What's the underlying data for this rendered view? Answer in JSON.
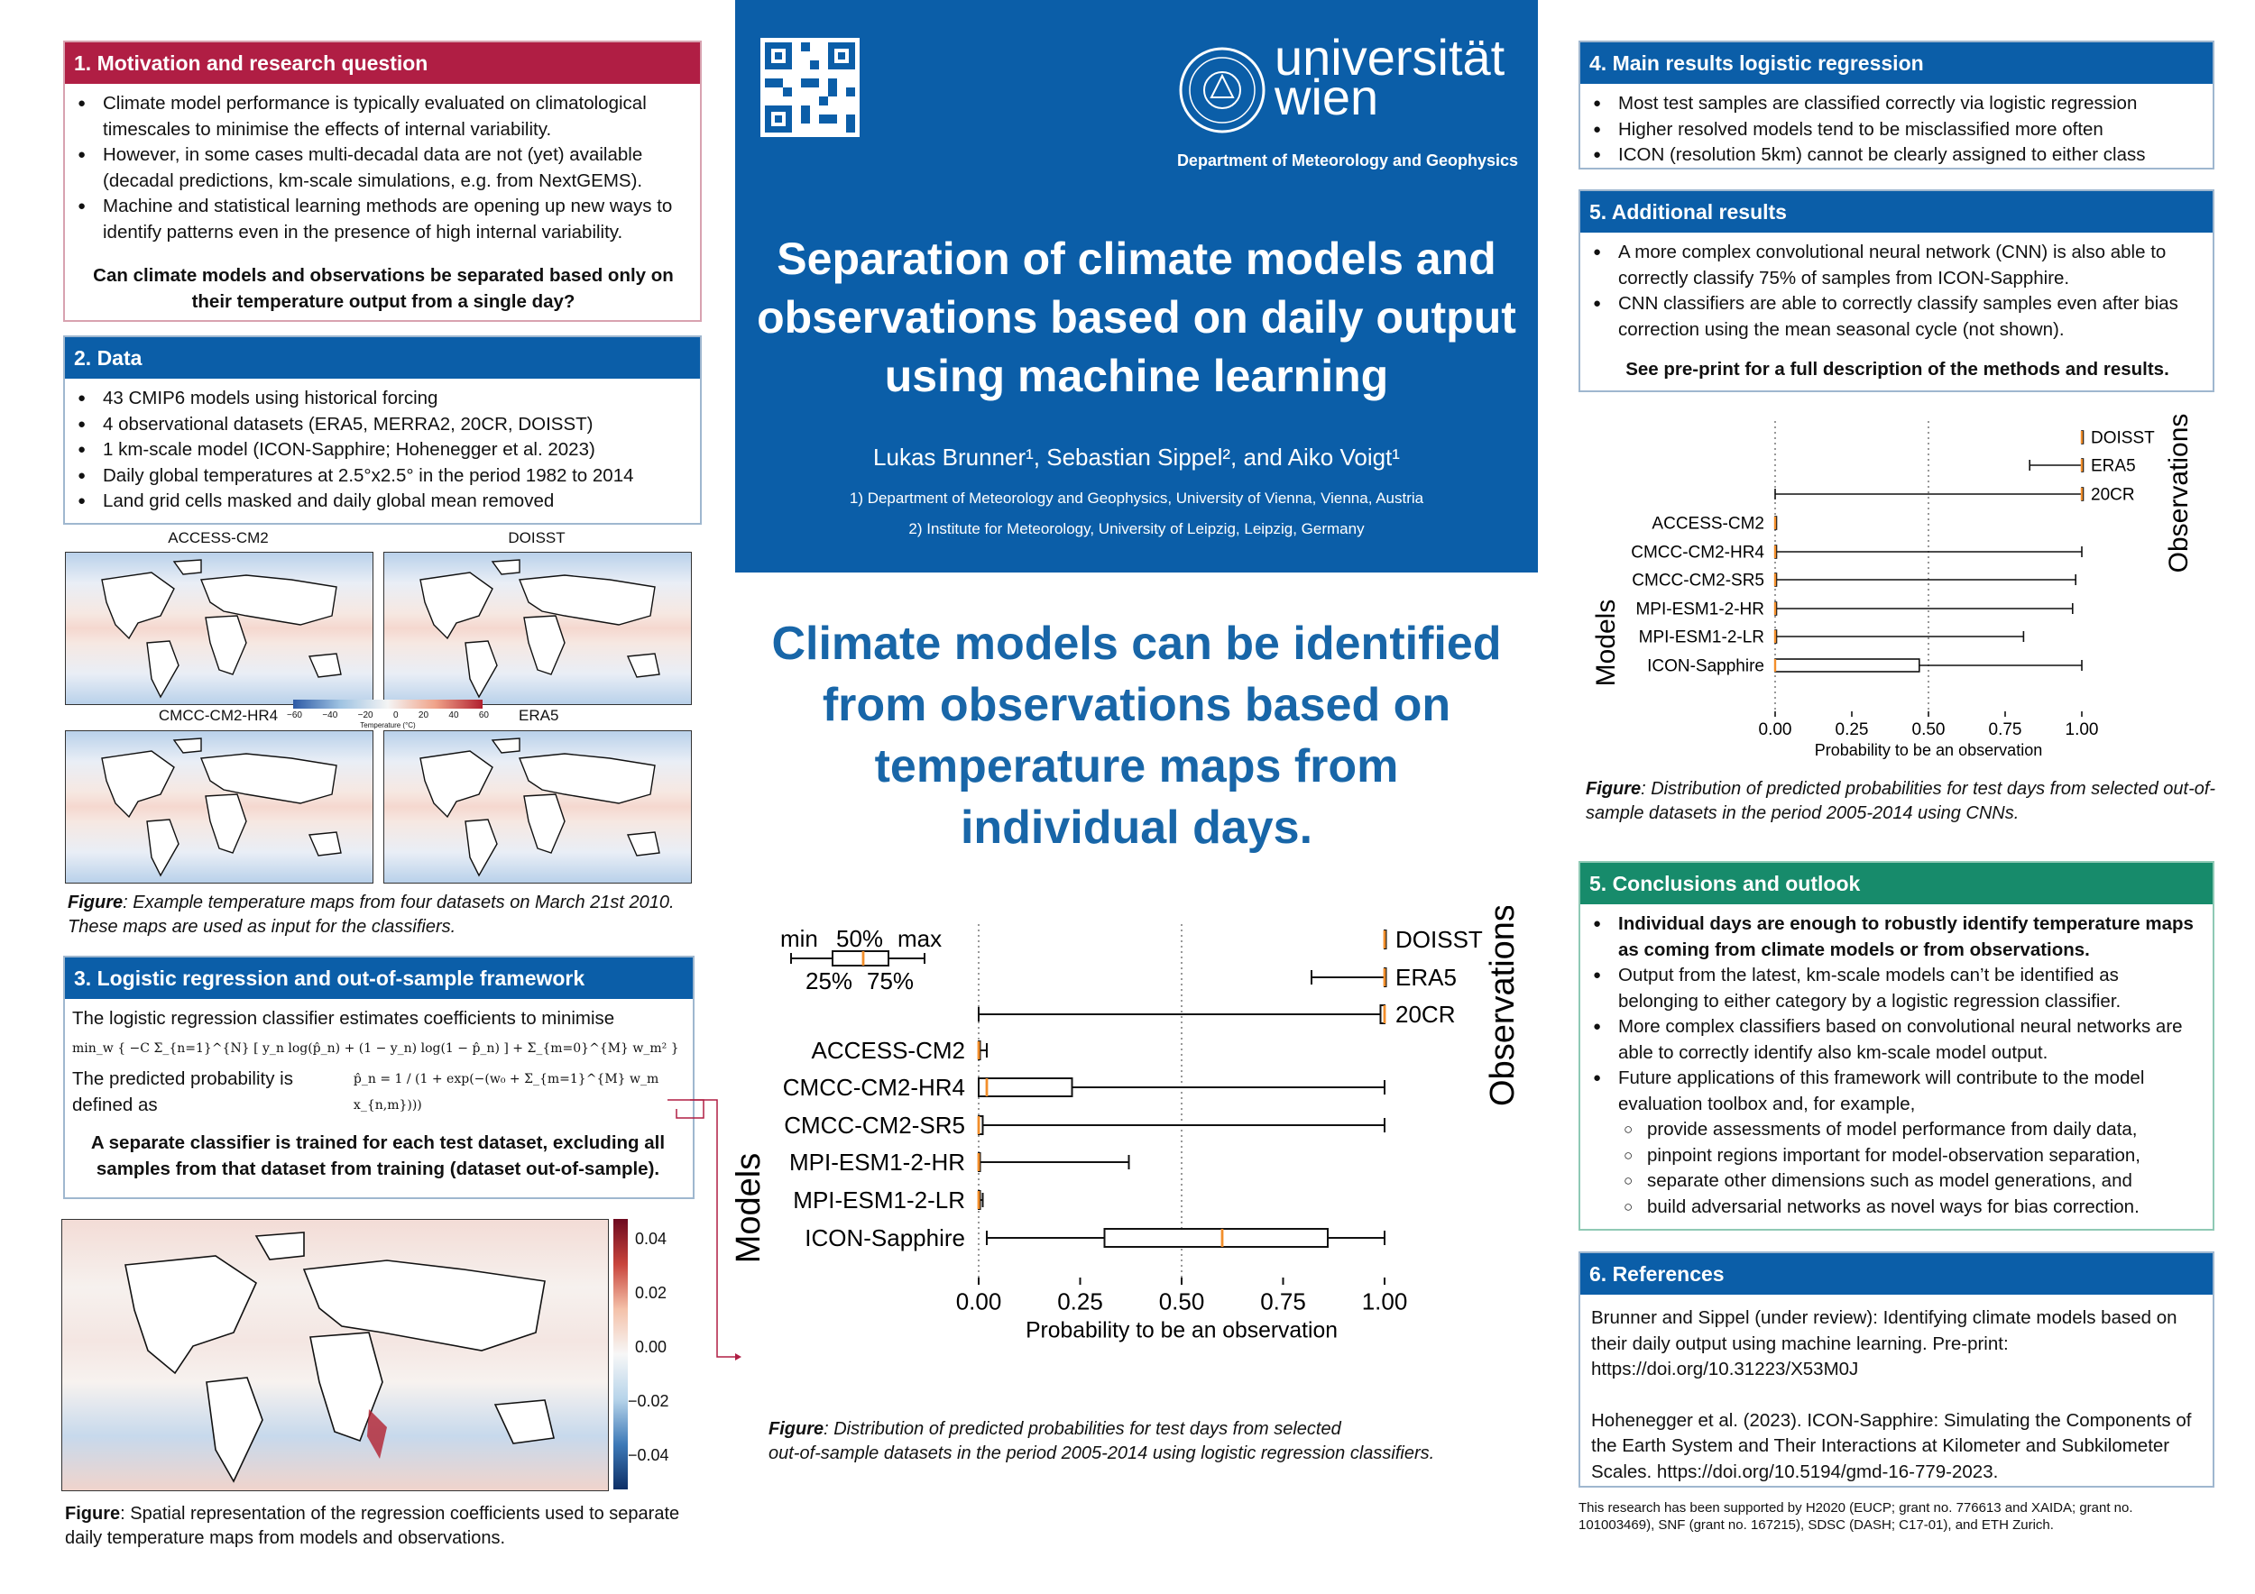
{
  "header": {
    "university": "universität wien",
    "university_line1": "universität",
    "university_line2": "wien",
    "department": "Department of Meteorology and Geophysics",
    "title_lines": [
      "Separation of climate models and",
      "observations based on daily output",
      "using machine learning"
    ],
    "authors": "Lukas Brunner¹, Sebastian Sippel², and Aiko Voigt¹",
    "affiliation1": "1) Department of Meteorology and Geophysics, University of Vienna, Vienna, Austria",
    "affiliation2": "2) Institute for Meteorology, University of Leipzig, Leipzig, Germany"
  },
  "key_message": [
    "Climate models can be identified",
    "from observations based on",
    "temperature maps from",
    "individual days."
  ],
  "colors": {
    "primary_blue": "#0b5ea8",
    "red": "#b01e44",
    "green": "#178b6b",
    "headline_blue": "#1866a8",
    "median_orange": "#f28e2b"
  },
  "section1": {
    "title": "1. Motivation and research question",
    "bullets": [
      "Climate model performance is typically evaluated on climatological timescales to minimise the effects of internal variability.",
      "However, in some cases multi-decadal data are not (yet) available (decadal predictions, km-scale simulations, e.g. from NextGEMS).",
      "Machine and statistical learning methods are opening up new ways to identify patterns even in the presence of high internal variability."
    ],
    "question": "Can climate models and observations be separated based only on their temperature output from a single day?"
  },
  "section2": {
    "title": "2. Data",
    "bullets": [
      "43 CMIP6 models using historical forcing",
      "4 observational datasets (ERA5, MERRA2, 20CR, DOISST)",
      "1 km-scale model (ICON-Sapphire; Hohenegger et al. 2023)",
      "Daily global temperatures at 2.5°x2.5° in the period 1982 to 2014",
      "Land grid cells masked and daily global mean removed"
    ],
    "map_titles": [
      "ACCESS-CM2",
      "DOISST",
      "CMCC-CM2-HR4",
      "ERA5"
    ],
    "colorbar_ticks": [
      "−60",
      "−40",
      "−20",
      "0",
      "20",
      "40",
      "60"
    ],
    "colorbar_label": "Temperature (°C)",
    "caption_prefix": "Figure",
    "caption": ": Example temperature maps from four datasets on March 21st 2010. These maps are used as input for the classifiers."
  },
  "section3": {
    "title": "3. Logistic regression and out-of-sample framework",
    "intro": "The logistic regression classifier estimates coefficients to minimise",
    "formula1": "min_w { −C Σ_{n=1}^{N} [ y_n log(p̂_n) + (1 − y_n) log(1 − p̂_n) ] + Σ_{m=0}^{M} w_m² }",
    "prob_text": "The predicted probability is defined as",
    "formula2": "p̂_n = 1 / (1 + exp(−(w₀ + Σ_{m=1}^{M} w_m x_{n,m})))",
    "bold_statement": "A separate classifier is trained for each test dataset, excluding all samples from that dataset from training (dataset out-of-sample).",
    "colorbar_ticks": [
      "0.04",
      "0.02",
      "0.00",
      "−0.02",
      "−0.04"
    ],
    "caption_prefix": "Figure",
    "caption": ": Spatial representation of the regression coefficients used to separate daily temperature maps from models and observations."
  },
  "section4": {
    "title": "4. Main results logistic regression",
    "bullets": [
      "Most test samples are classified correctly via logistic regression",
      "Higher resolved models tend to be misclassified more often",
      "ICON (resolution 5km) cannot be clearly assigned to either class"
    ]
  },
  "section5a": {
    "title": "5. Additional results",
    "bullets": [
      "A more complex convolutional neural network (CNN) is also able to correctly classify 75% of samples from ICON-Sapphire.",
      "CNN classifiers are able to correctly classify samples even after bias correction using the mean seasonal cycle (not shown)."
    ],
    "bold_note": "See pre-print for a full description of the methods and results.",
    "caption_prefix": "Figure",
    "caption": ": Distribution of predicted probabilities for test days from selected out-of-sample datasets in the period 2005-2014 using CNNs."
  },
  "section5b": {
    "title": "5. Conclusions and outlook",
    "bullets": [
      "Individual days are enough to robustly identify temperature maps as coming from climate models or from observations.",
      "Output from the latest, km-scale models can’t be identified as belonging to either category by a logistic regression classifier.",
      "More complex classifiers based on convolutional neural networks are able to correctly identify also km-scale model output.",
      "Future  applications of this framework will contribute to the model evaluation toolbox and, for example,"
    ],
    "sub_bullets": [
      "provide assessments of model performance from daily data,",
      "pinpoint regions important for model-observation separation,",
      "separate other dimensions such as model generations, and",
      "build adversarial networks as novel ways for bias correction."
    ]
  },
  "section6": {
    "title": "6. References",
    "refs": [
      "Brunner and Sippel (under review): Identifying climate models based on their daily output using machine learning. Pre-print: https://doi.org/10.31223/X53M0J",
      "Hohenegger et al. (2023). ICON-Sapphire: Simulating the Components of the Earth System and Their Interactions at Kilometer and Subkilometer Scales. https://doi.org/10.5194/gmd-16-779-2023."
    ],
    "funding": "This research has been supported by H2020 (EUCP; grant no. 776613 and XAIDA; grant no. 101003469), SNF (grant no. 167215), SDSC (DASH; C17-01), and ETH Zurich."
  },
  "center_figure": {
    "caption_prefix": "Figure",
    "caption_line1": ": Distribution of predicted probabilities for test days from selected",
    "caption_line2": "out-of-sample datasets in the period 2005-2014 using logistic regression classifiers.",
    "legend": {
      "min": "min",
      "p50": "50%",
      "max": "max",
      "p25": "25%",
      "p75": "75%"
    }
  },
  "chart_data": [
    {
      "type": "box",
      "xlabel": "Probability to be an observation",
      "xlim": [
        0,
        1
      ],
      "xticks": [
        "0.00",
        "0.25",
        "0.50",
        "0.75",
        "1.00"
      ],
      "group_labels": [
        "Observations",
        "Models"
      ],
      "dotted_lines": [
        0,
        0.5
      ],
      "categories": [
        "DOISST",
        "ERA5",
        "20CR",
        "ACCESS-CM2",
        "CMCC-CM2-HR4",
        "CMCC-CM2-SR5",
        "MPI-ESM1-2-HR",
        "MPI-ESM1-2-LR",
        "ICON-Sapphire"
      ],
      "groups": [
        "obs",
        "obs",
        "obs",
        "model",
        "model",
        "model",
        "model",
        "model",
        "model"
      ],
      "boxes": [
        {
          "min": 1.0,
          "q1": 1.0,
          "median": 1.0,
          "q3": 1.0,
          "max": 1.0
        },
        {
          "min": 0.82,
          "q1": 1.0,
          "median": 1.0,
          "q3": 1.0,
          "max": 1.0
        },
        {
          "min": 0.0,
          "q1": 0.99,
          "median": 1.0,
          "q3": 1.0,
          "max": 1.0
        },
        {
          "min": 0.0,
          "q1": 0.0,
          "median": 0.0,
          "q3": 0.0,
          "max": 0.02
        },
        {
          "min": 0.0,
          "q1": 0.0,
          "median": 0.02,
          "q3": 0.23,
          "max": 1.0
        },
        {
          "min": 0.0,
          "q1": 0.0,
          "median": 0.0,
          "q3": 0.01,
          "max": 1.0
        },
        {
          "min": 0.0,
          "q1": 0.0,
          "median": 0.0,
          "q3": 0.0,
          "max": 0.37
        },
        {
          "min": 0.0,
          "q1": 0.0,
          "median": 0.0,
          "q3": 0.0,
          "max": 0.01
        },
        {
          "min": 0.02,
          "q1": 0.31,
          "median": 0.6,
          "q3": 0.86,
          "max": 1.0
        }
      ]
    },
    {
      "type": "box",
      "xlabel": "Probability to be an observation",
      "xlim": [
        0,
        1
      ],
      "xticks": [
        "0.00",
        "0.25",
        "0.50",
        "0.75",
        "1.00"
      ],
      "group_labels": [
        "Observations",
        "Models"
      ],
      "dotted_lines": [
        0,
        0.5
      ],
      "categories": [
        "DOISST",
        "ERA5",
        "20CR",
        "ACCESS-CM2",
        "CMCC-CM2-HR4",
        "CMCC-CM2-SR5",
        "MPI-ESM1-2-HR",
        "MPI-ESM1-2-LR",
        "ICON-Sapphire"
      ],
      "groups": [
        "obs",
        "obs",
        "obs",
        "model",
        "model",
        "model",
        "model",
        "model",
        "model"
      ],
      "boxes": [
        {
          "min": 1.0,
          "q1": 1.0,
          "median": 1.0,
          "q3": 1.0,
          "max": 1.0
        },
        {
          "min": 0.83,
          "q1": 1.0,
          "median": 1.0,
          "q3": 1.0,
          "max": 1.0
        },
        {
          "min": 0.0,
          "q1": 1.0,
          "median": 1.0,
          "q3": 1.0,
          "max": 1.0
        },
        {
          "min": 0.0,
          "q1": 0.0,
          "median": 0.0,
          "q3": 0.0,
          "max": 0.0
        },
        {
          "min": 0.0,
          "q1": 0.0,
          "median": 0.0,
          "q3": 0.0,
          "max": 1.0
        },
        {
          "min": 0.0,
          "q1": 0.0,
          "median": 0.0,
          "q3": 0.0,
          "max": 0.98
        },
        {
          "min": 0.0,
          "q1": 0.0,
          "median": 0.0,
          "q3": 0.0,
          "max": 0.97
        },
        {
          "min": 0.0,
          "q1": 0.0,
          "median": 0.0,
          "q3": 0.0,
          "max": 0.81
        },
        {
          "min": 0.0,
          "q1": 0.0,
          "median": 0.0,
          "q3": 0.47,
          "max": 1.0
        }
      ]
    }
  ]
}
